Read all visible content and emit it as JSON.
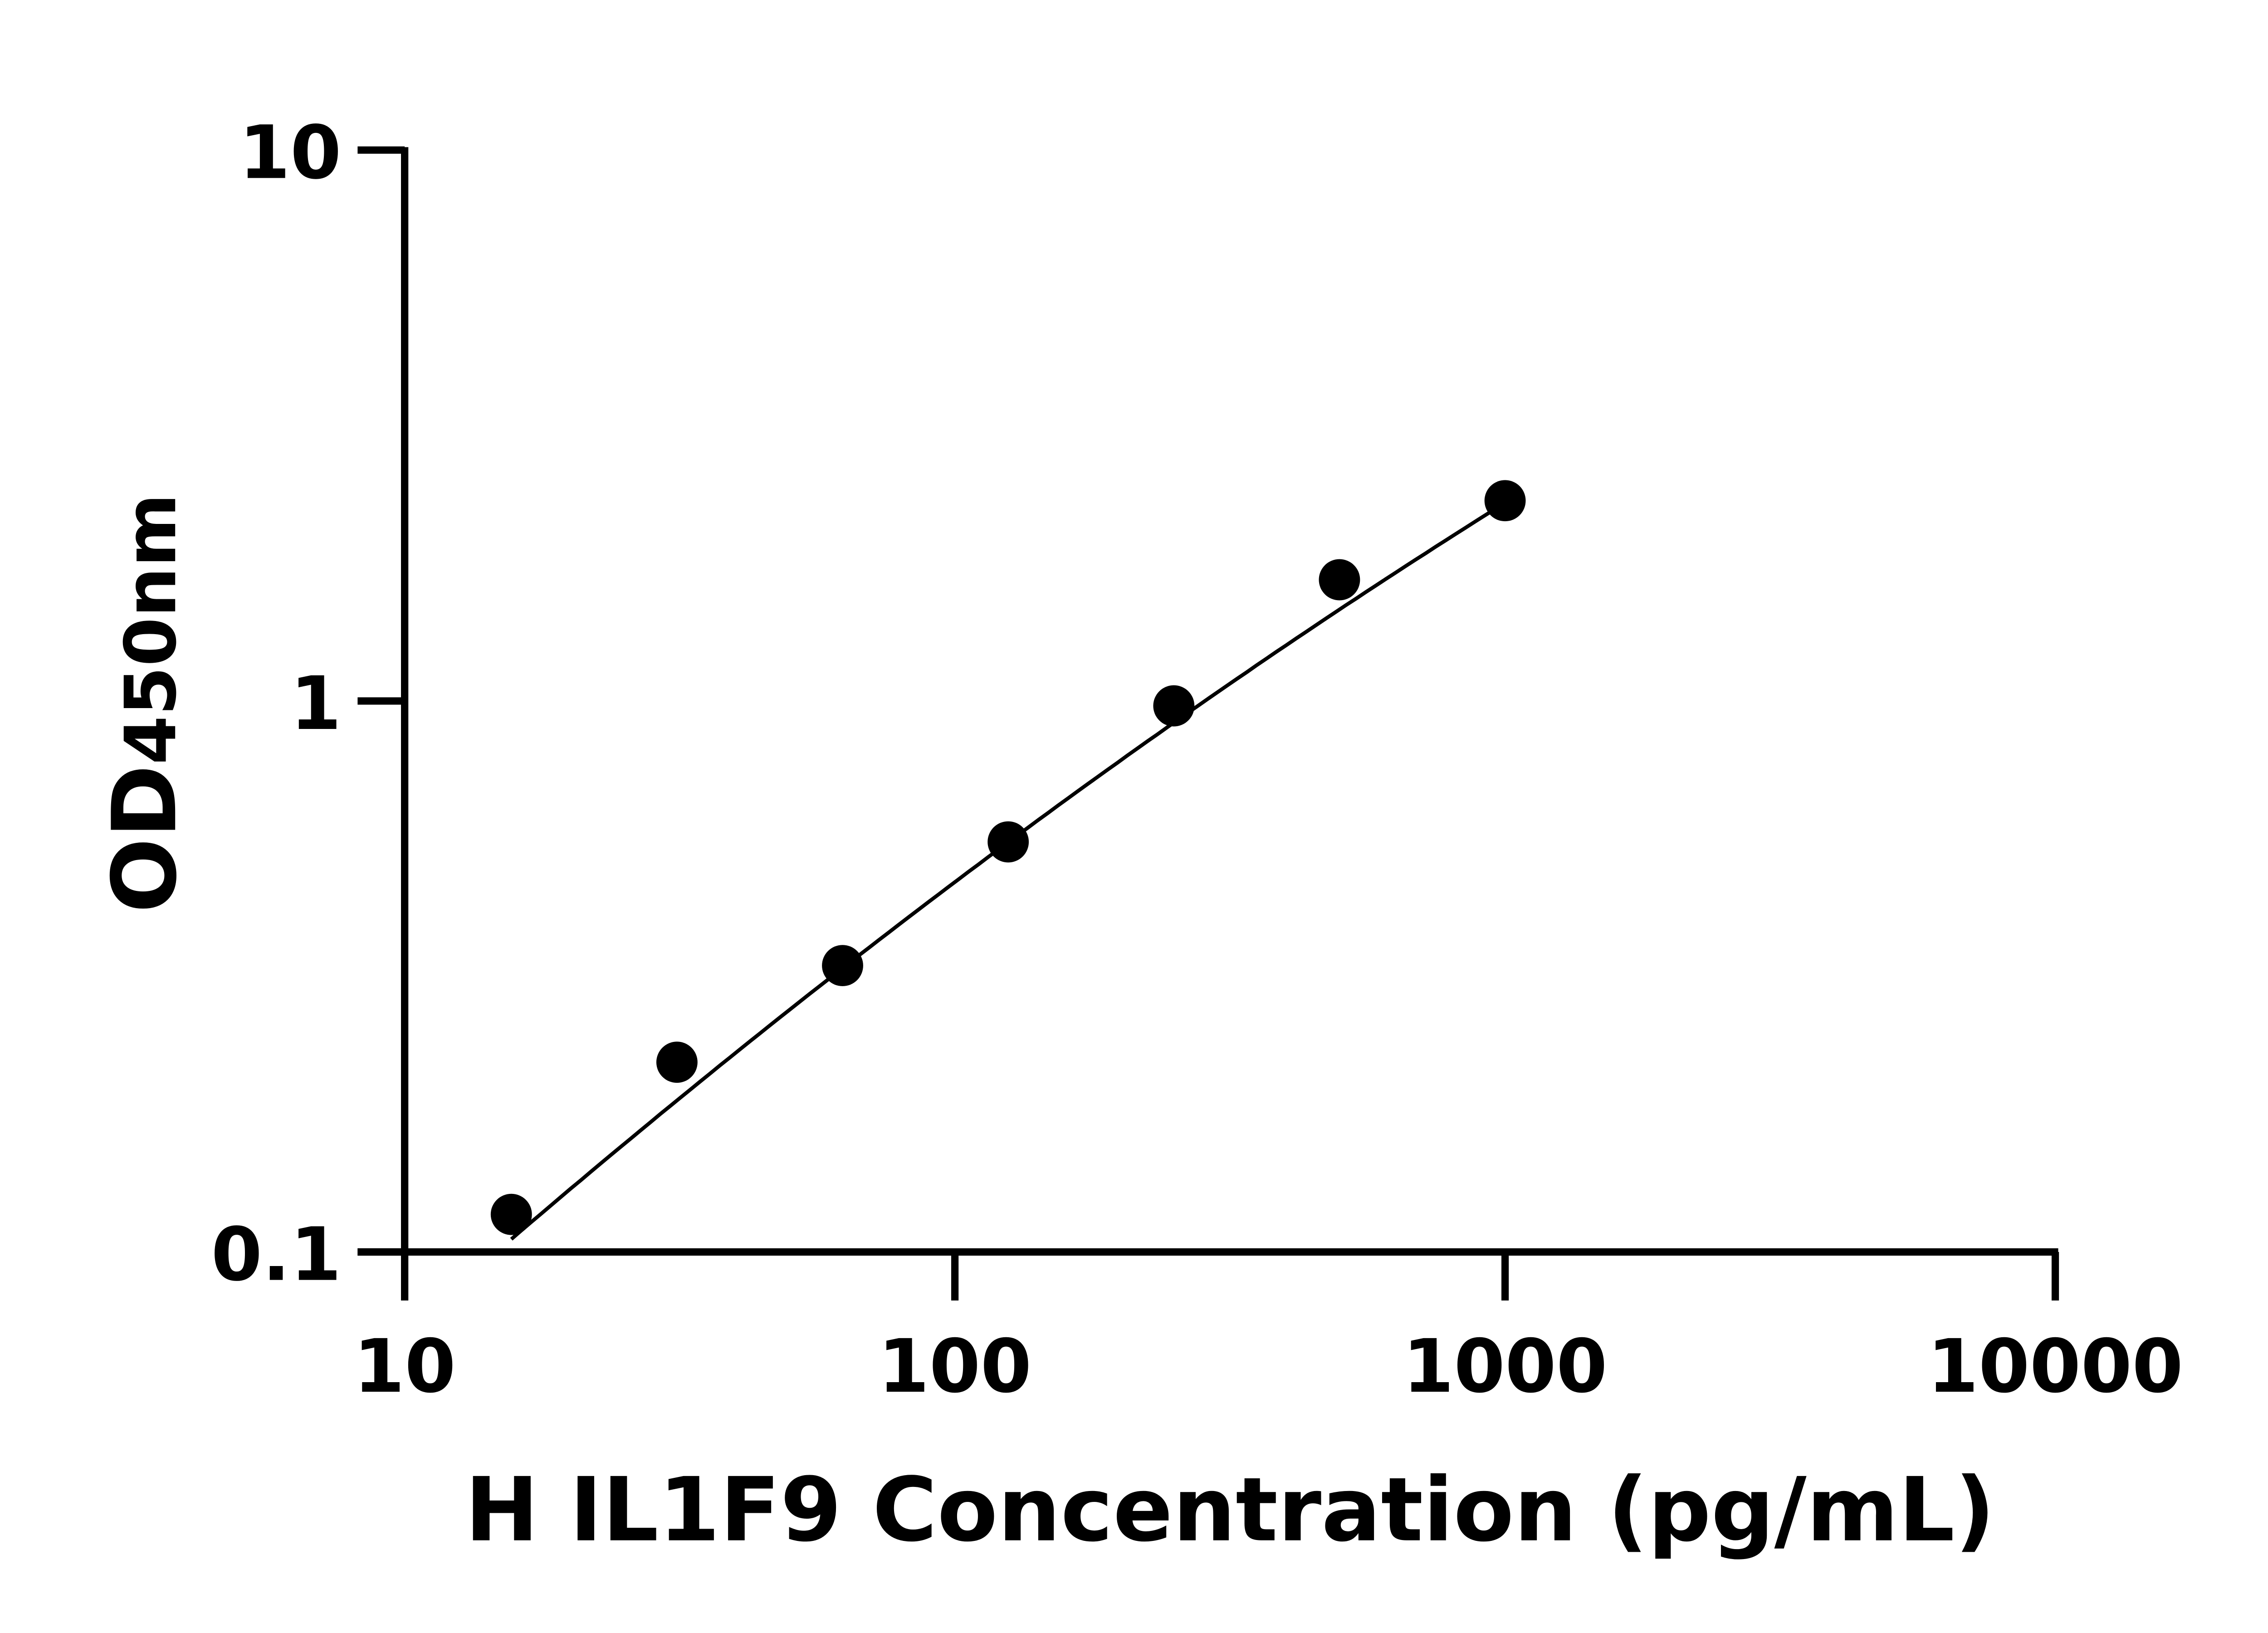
{
  "chart_data": {
    "type": "scatter",
    "title": "",
    "xlabel": "H IL1F9 Concentration (pg/mL)",
    "ylabel_main": "OD",
    "ylabel_sub": "450nm",
    "x_scale": "log",
    "y_scale": "log",
    "xlim": [
      10,
      10000
    ],
    "ylim": [
      0.1,
      10
    ],
    "x_ticks": [
      "10",
      "100",
      "1000",
      "10000"
    ],
    "y_ticks": [
      "0.1",
      "1",
      "10"
    ],
    "grid": false,
    "legend": "none",
    "fit_curve": true,
    "x": [
      15.625,
      31.25,
      62.5,
      125,
      250,
      500,
      1000
    ],
    "y": [
      0.117,
      0.221,
      0.331,
      0.555,
      0.98,
      1.66,
      2.31
    ],
    "color": "#000000"
  }
}
